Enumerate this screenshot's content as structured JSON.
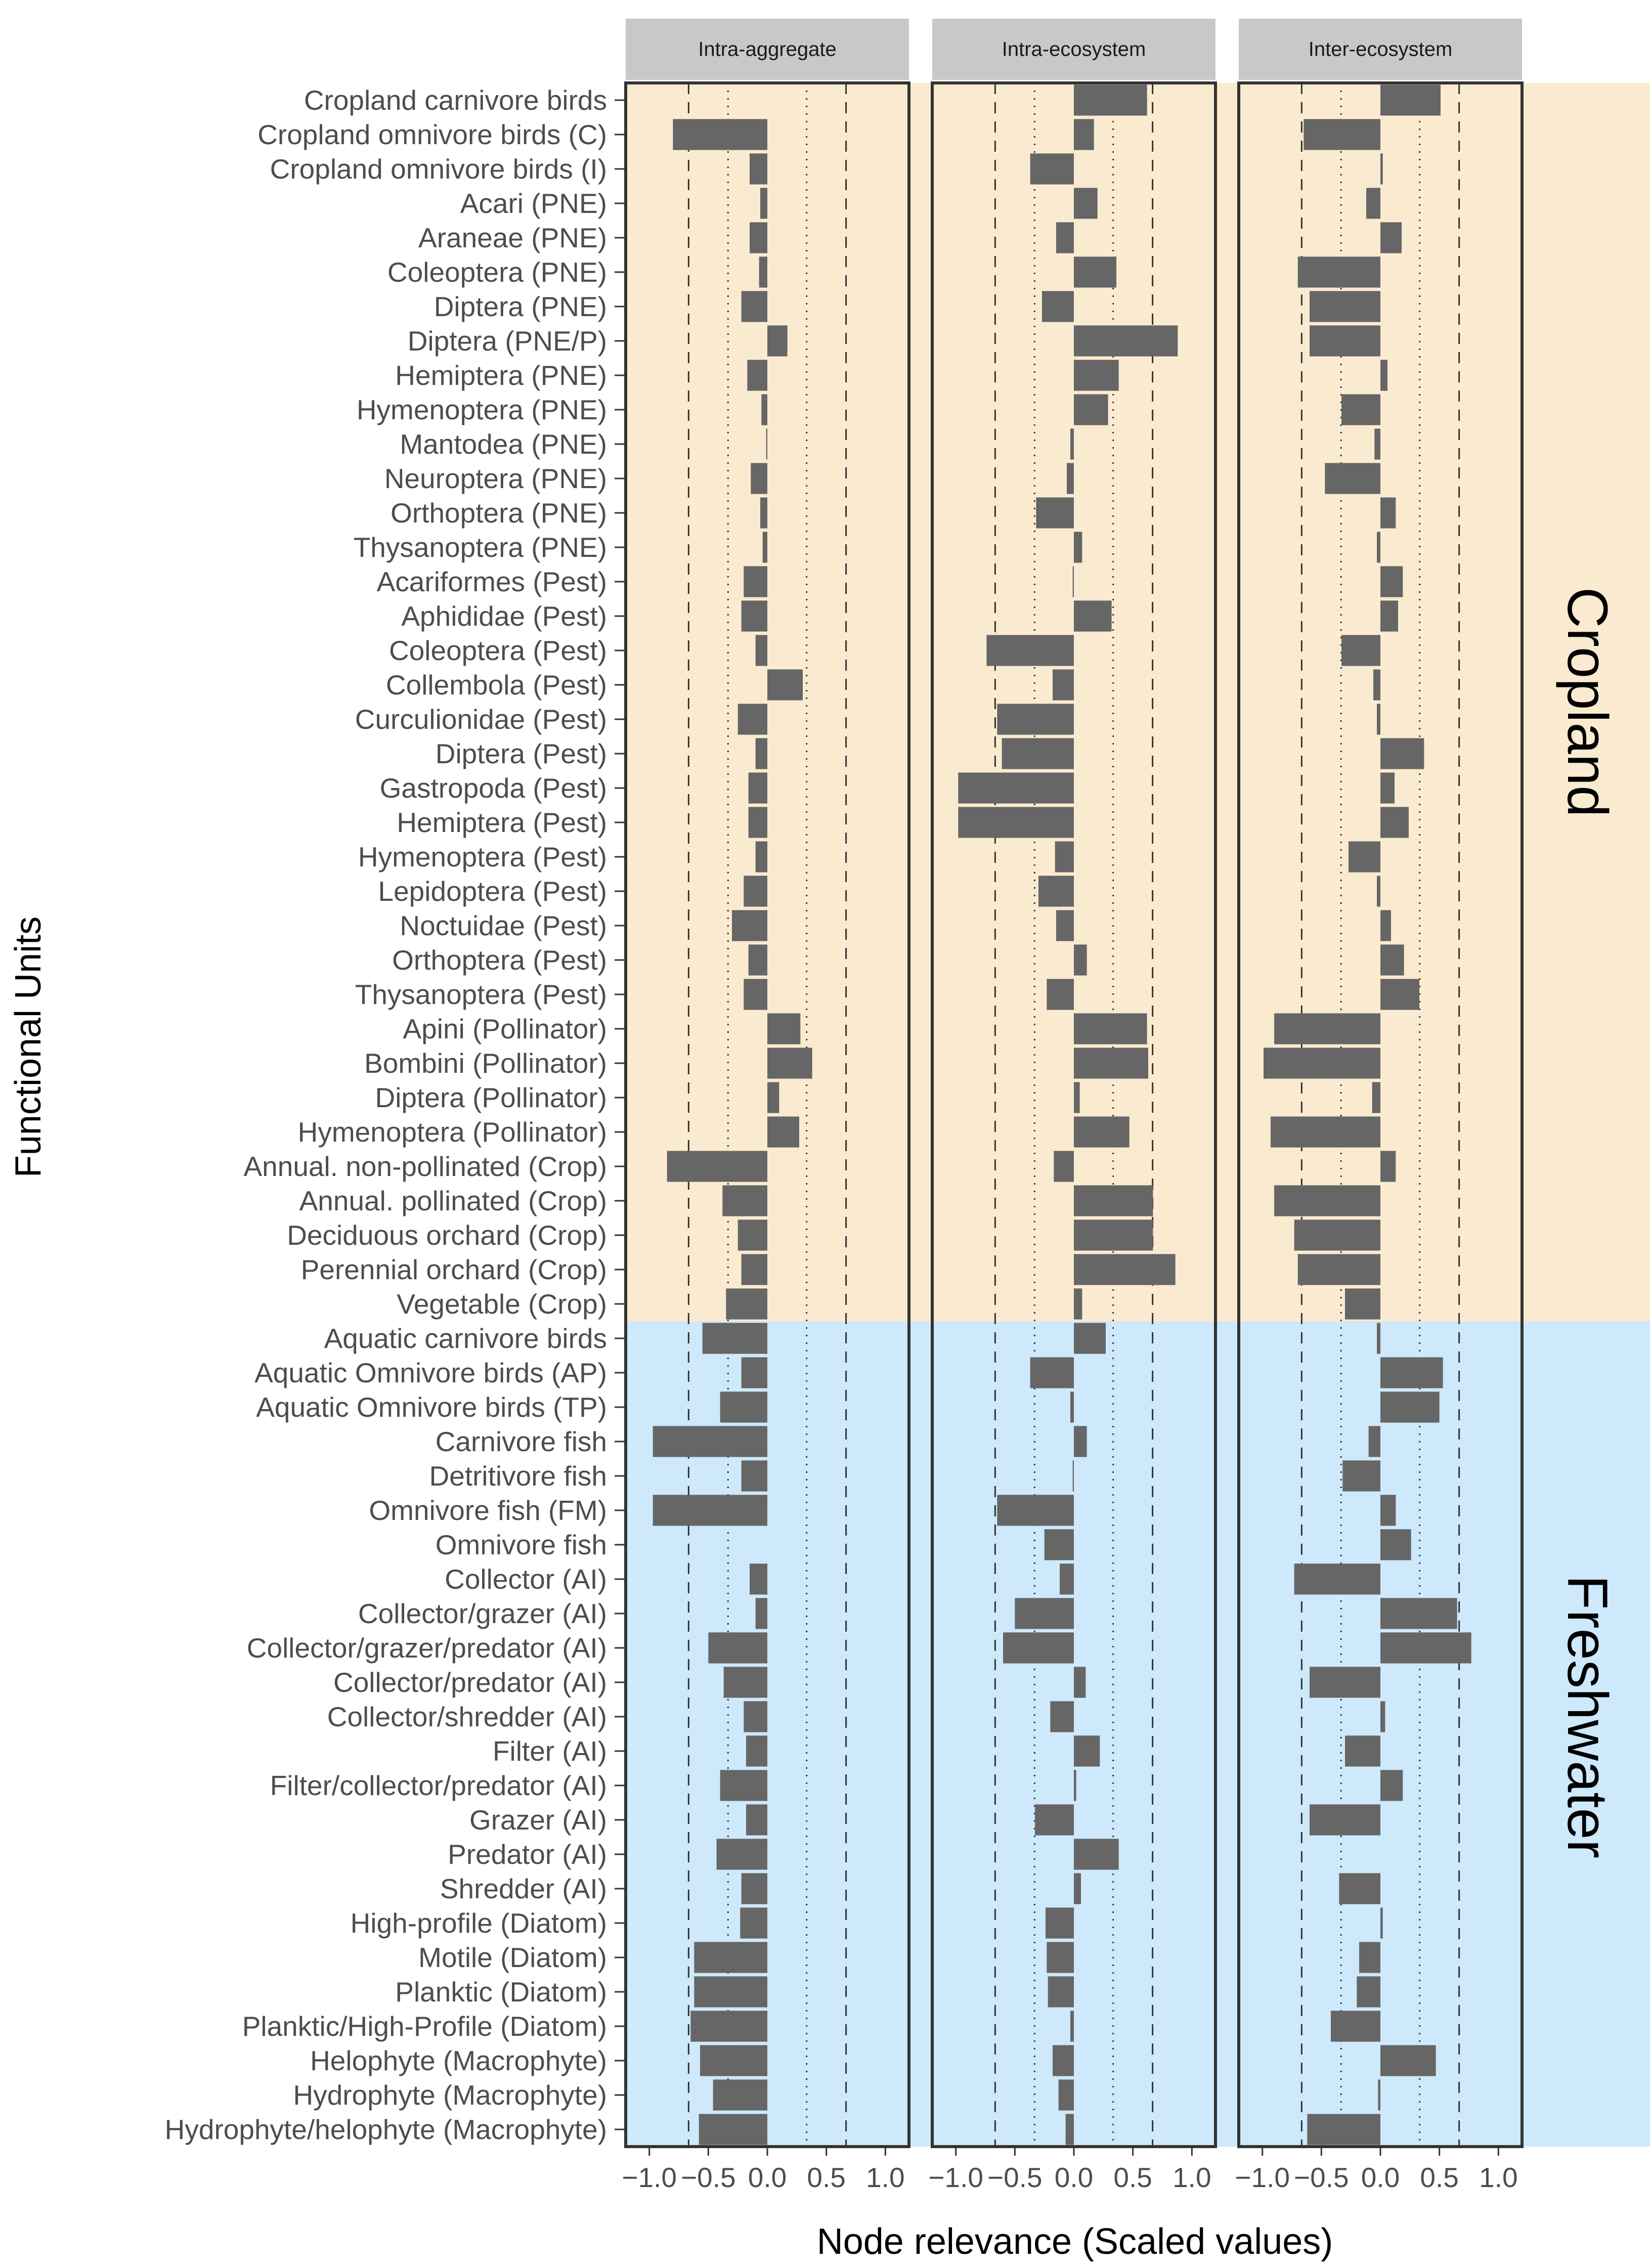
{
  "chart_data": {
    "type": "bar",
    "orientation": "horizontal",
    "ylabel": "Functional Units",
    "xlabel": "Node relevance (Scaled values)",
    "xlim": [
      -1.2,
      1.2
    ],
    "xticks": [
      -1.0,
      -0.5,
      0.0,
      0.5,
      1.0
    ],
    "xtick_labels": [
      "−1.0",
      "−0.5",
      "0.0",
      "0.5",
      "1.0"
    ],
    "reference_lines": {
      "dashed": [
        -0.667,
        0.667
      ],
      "dotted": [
        -0.333,
        0.333
      ]
    },
    "colors": {
      "bar": "#666666",
      "cropland_bg": "#FAEBD0",
      "freshwater_bg": "#CDE9FB",
      "strip": "#C8C8C8",
      "frame": "#333333"
    },
    "regions": [
      {
        "name": "Cropland",
        "start": 0,
        "end": 36
      },
      {
        "name": "Freshwater",
        "start": 36,
        "end": 59
      }
    ],
    "categories": [
      "Cropland carnivore birds",
      "Cropland omnivore birds (C)",
      "Cropland omnivore birds (I)",
      "Acari (PNE)",
      "Araneae (PNE)",
      "Coleoptera (PNE)",
      "Diptera (PNE)",
      "Diptera (PNE/P)",
      "Hemiptera (PNE)",
      "Hymenoptera (PNE)",
      "Mantodea (PNE)",
      "Neuroptera (PNE)",
      "Orthoptera (PNE)",
      "Thysanoptera (PNE)",
      "Acariformes (Pest)",
      "Aphididae (Pest)",
      "Coleoptera (Pest)",
      "Collembola (Pest)",
      "Curculionidae (Pest)",
      "Diptera (Pest)",
      "Gastropoda (Pest)",
      "Hemiptera (Pest)",
      "Hymenoptera (Pest)",
      "Lepidoptera (Pest)",
      "Noctuidae (Pest)",
      "Orthoptera (Pest)",
      "Thysanoptera (Pest)",
      "Apini (Pollinator)",
      "Bombini (Pollinator)",
      "Diptera (Pollinator)",
      "Hymenoptera (Pollinator)",
      "Annual. non-pollinated (Crop)",
      "Annual. pollinated (Crop)",
      "Deciduous orchard (Crop)",
      "Perennial orchard (Crop)",
      "Vegetable (Crop)",
      "Aquatic carnivore birds",
      "Aquatic Omnivore birds (AP)",
      "Aquatic Omnivore birds (TP)",
      "Carnivore fish",
      "Detritivore fish",
      "Omnivore fish (FM)",
      "Omnivore fish",
      "Collector (AI)",
      "Collector/grazer (AI)",
      "Collector/grazer/predator (AI)",
      "Collector/predator (AI)",
      "Collector/shredder (AI)",
      "Filter (AI)",
      "Filter/collector/predator (AI)",
      "Grazer (AI)",
      "Predator (AI)",
      "Shredder (AI)",
      "High-profile (Diatom)",
      "Motile (Diatom)",
      "Planktic (Diatom)",
      "Planktic/High-Profile (Diatom)",
      "Helophyte (Macrophyte)",
      "Hydrophyte (Macrophyte)",
      "Hydrophyte/helophyte (Macrophyte)"
    ],
    "series": [
      {
        "name": "Intra-aggregate",
        "values": [
          0.0,
          -0.8,
          -0.15,
          -0.06,
          -0.15,
          -0.07,
          -0.22,
          0.17,
          -0.17,
          -0.05,
          -0.01,
          -0.14,
          -0.06,
          -0.04,
          -0.2,
          -0.22,
          -0.1,
          0.3,
          -0.25,
          -0.1,
          -0.16,
          -0.16,
          -0.1,
          -0.2,
          -0.3,
          -0.16,
          -0.2,
          0.28,
          0.38,
          0.1,
          0.27,
          -0.85,
          -0.38,
          -0.25,
          -0.22,
          -0.35,
          -0.55,
          -0.22,
          -0.4,
          -0.97,
          -0.22,
          -0.97,
          0.0,
          -0.15,
          -0.1,
          -0.5,
          -0.37,
          -0.2,
          -0.18,
          -0.4,
          -0.18,
          -0.43,
          -0.22,
          -0.23,
          -0.62,
          -0.62,
          -0.65,
          -0.57,
          -0.46,
          -0.58
        ]
      },
      {
        "name": "Intra-ecosystem",
        "values": [
          0.62,
          0.17,
          -0.37,
          0.2,
          -0.15,
          0.36,
          -0.27,
          0.88,
          0.38,
          0.29,
          -0.03,
          -0.06,
          -0.32,
          0.07,
          -0.01,
          0.32,
          -0.74,
          -0.18,
          -0.65,
          -0.61,
          -0.98,
          -0.98,
          -0.16,
          -0.3,
          -0.15,
          0.11,
          -0.23,
          0.62,
          0.63,
          0.05,
          0.47,
          -0.17,
          0.67,
          0.67,
          0.86,
          0.07,
          0.27,
          -0.37,
          -0.03,
          0.11,
          -0.01,
          -0.65,
          -0.25,
          -0.12,
          -0.5,
          -0.6,
          0.1,
          -0.2,
          0.22,
          0.02,
          -0.33,
          0.38,
          0.06,
          -0.24,
          -0.23,
          -0.22,
          -0.03,
          -0.18,
          -0.13,
          -0.07
        ]
      },
      {
        "name": "Inter-ecosystem",
        "values": [
          0.51,
          -0.65,
          0.02,
          -0.12,
          0.18,
          -0.7,
          -0.6,
          -0.6,
          0.06,
          -0.33,
          -0.05,
          -0.47,
          0.13,
          -0.03,
          0.19,
          0.15,
          -0.33,
          -0.06,
          -0.03,
          0.37,
          0.12,
          0.24,
          -0.27,
          -0.03,
          0.09,
          0.2,
          0.33,
          -0.9,
          -0.99,
          -0.07,
          -0.93,
          0.13,
          -0.9,
          -0.73,
          -0.7,
          -0.3,
          -0.03,
          0.53,
          0.5,
          -0.1,
          -0.32,
          0.13,
          0.26,
          -0.73,
          0.65,
          0.77,
          -0.6,
          0.04,
          -0.3,
          0.19,
          -0.6,
          0.0,
          -0.35,
          0.02,
          -0.18,
          -0.2,
          -0.42,
          0.47,
          -0.02,
          -0.62
        ]
      }
    ]
  }
}
